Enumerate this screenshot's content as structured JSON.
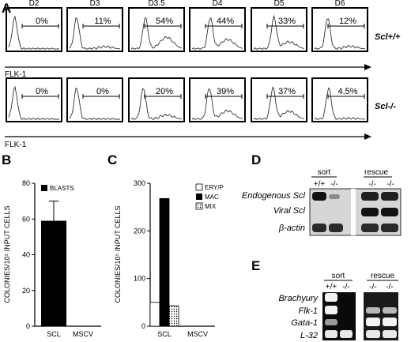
{
  "panels": [
    "A",
    "B",
    "C",
    "D",
    "E"
  ],
  "panel_a": {
    "days": [
      "D2",
      "D3",
      "D3.5",
      "D4",
      "D5",
      "D6"
    ],
    "axis_label": "FLK-1",
    "rows": [
      {
        "genotype": "Scl+/+",
        "percents": [
          "0%",
          "11%",
          "54%",
          "44%",
          "33%",
          "12%"
        ]
      },
      {
        "genotype": "Scl-/-",
        "percents": [
          "0%",
          "0%",
          "20%",
          "39%",
          "37%",
          "4.5%"
        ]
      }
    ]
  },
  "chart_data": [
    {
      "panel": "B",
      "type": "bar",
      "categories": [
        "SCL",
        "MSCV"
      ],
      "series": [
        {
          "name": "BLASTS",
          "values": [
            59,
            0
          ],
          "error": [
            11,
            0
          ],
          "color": "#000000"
        }
      ],
      "ylabel": "COLONIES/10⁵ INPUT CELLS",
      "ylim": [
        0,
        80
      ],
      "yticks": [
        "0",
        "20",
        "40",
        "60",
        "80"
      ],
      "legend": "top-right"
    },
    {
      "panel": "C",
      "type": "bar",
      "categories": [
        "SCL",
        "MSCV"
      ],
      "series": [
        {
          "name": "ERY/P",
          "values": [
            50,
            0
          ],
          "pattern": "white"
        },
        {
          "name": "MAC",
          "values": [
            268,
            0
          ],
          "pattern": "black"
        },
        {
          "name": "MIX",
          "values": [
            43,
            0
          ],
          "pattern": "dotted"
        }
      ],
      "ylabel": "COLONIES/10⁵ INPUT CELLS",
      "ylim": [
        0,
        300
      ],
      "yticks": [
        "0",
        "100",
        "200",
        "300"
      ],
      "legend": "top-right"
    }
  ],
  "panel_d": {
    "groups": [
      "sort",
      "rescue"
    ],
    "lanes": [
      "+/+",
      "-/-",
      "-/-",
      "-/-"
    ],
    "rows": [
      "Endogenous Scl",
      "Viral Scl",
      "β-actin"
    ]
  },
  "panel_e": {
    "groups": [
      "sort",
      "rescue"
    ],
    "lanes": [
      "+/+",
      "-/-",
      "-/-",
      "-/-"
    ],
    "rows": [
      "Brachyury",
      "Flk-1",
      "Gata-1",
      "L-32"
    ]
  }
}
